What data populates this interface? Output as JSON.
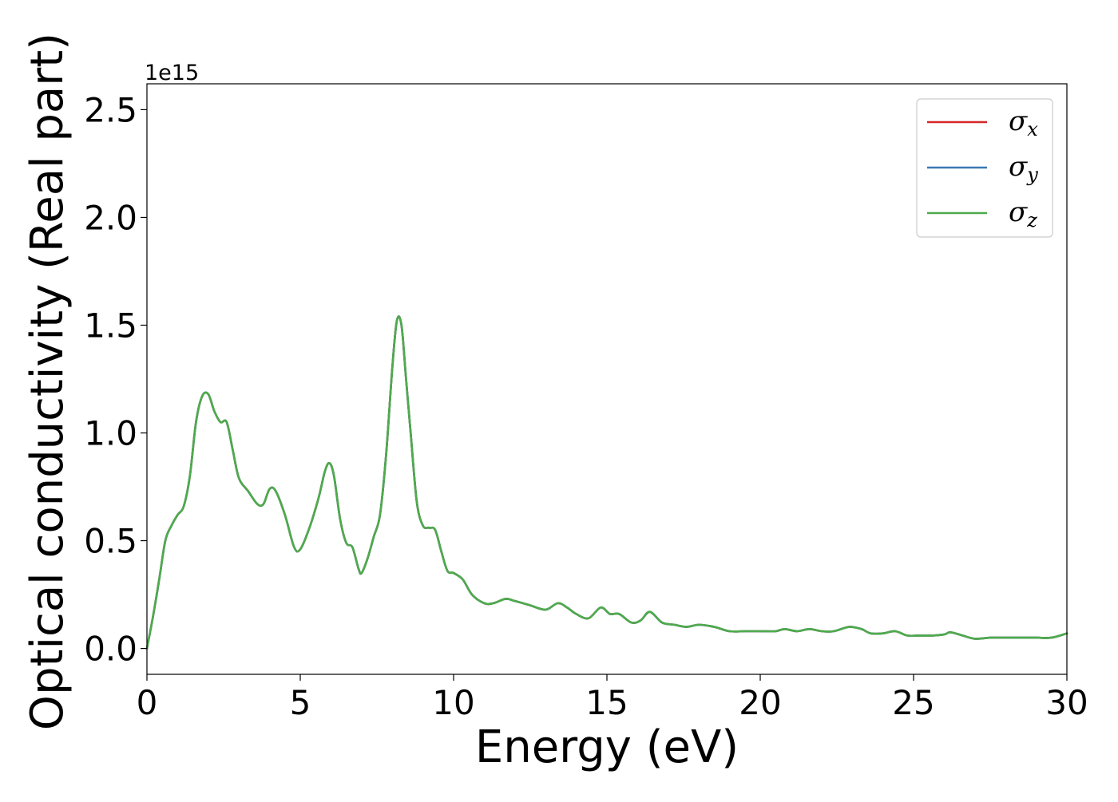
{
  "chart_data": {
    "type": "line",
    "xlabel": "Energy (eV)",
    "ylabel": "Optical conductivity (Real part)",
    "y_offset_text": "1e15",
    "xlim": [
      0,
      30
    ],
    "ylim": [
      -0.12,
      2.62
    ],
    "x_ticks": [
      0,
      5,
      10,
      15,
      20,
      25,
      30
    ],
    "x_tick_labels": [
      "0",
      "5",
      "10",
      "15",
      "20",
      "25",
      "30"
    ],
    "y_ticks": [
      0.0,
      0.5,
      1.0,
      1.5,
      2.0,
      2.5
    ],
    "y_tick_labels": [
      "0.0",
      "0.5",
      "1.0",
      "1.5",
      "2.0",
      "2.5"
    ],
    "grid": false,
    "legend_position": "top-right",
    "legend": [
      {
        "symbol": "σ",
        "subscript": "x",
        "color": "#d62728"
      },
      {
        "symbol": "σ",
        "subscript": "y",
        "color": "#3a78b5"
      },
      {
        "symbol": "σ",
        "subscript": "z",
        "color": "#4dab4b"
      }
    ],
    "x": [
      0,
      0.2,
      0.4,
      0.6,
      0.8,
      1.0,
      1.2,
      1.4,
      1.6,
      1.8,
      2.0,
      2.2,
      2.4,
      2.6,
      2.8,
      3.0,
      3.3,
      3.6,
      3.8,
      4.0,
      4.2,
      4.5,
      4.8,
      5.0,
      5.3,
      5.6,
      5.8,
      5.95,
      6.1,
      6.3,
      6.5,
      6.7,
      6.9,
      7.0,
      7.2,
      7.4,
      7.6,
      7.8,
      8.0,
      8.15,
      8.3,
      8.45,
      8.6,
      8.8,
      9.0,
      9.2,
      9.4,
      9.6,
      9.8,
      10.0,
      10.3,
      10.6,
      11.0,
      11.3,
      11.7,
      12.0,
      12.5,
      13.0,
      13.4,
      13.7,
      14.0,
      14.4,
      14.8,
      15.1,
      15.4,
      15.8,
      16.1,
      16.4,
      16.8,
      17.2,
      17.6,
      18.0,
      18.5,
      19.0,
      19.5,
      20.0,
      20.5,
      20.8,
      21.2,
      21.6,
      22.0,
      22.4,
      22.9,
      23.3,
      23.6,
      24.0,
      24.4,
      24.8,
      25.2,
      25.6,
      26.0,
      26.2,
      26.6,
      27.0,
      27.5,
      28.0,
      28.5,
      29.0,
      29.5,
      30.0
    ],
    "series": [
      {
        "name": "σx",
        "color": "#d62728",
        "values": [
          0.0,
          0.15,
          0.32,
          0.5,
          0.57,
          0.62,
          0.66,
          0.8,
          1.05,
          1.17,
          1.18,
          1.1,
          1.05,
          1.05,
          0.92,
          0.79,
          0.73,
          0.67,
          0.67,
          0.74,
          0.73,
          0.62,
          0.47,
          0.46,
          0.56,
          0.7,
          0.82,
          0.86,
          0.8,
          0.6,
          0.49,
          0.47,
          0.37,
          0.35,
          0.42,
          0.52,
          0.62,
          0.9,
          1.3,
          1.52,
          1.5,
          1.25,
          1.0,
          0.68,
          0.57,
          0.56,
          0.55,
          0.45,
          0.36,
          0.35,
          0.32,
          0.25,
          0.21,
          0.21,
          0.23,
          0.22,
          0.2,
          0.18,
          0.21,
          0.19,
          0.16,
          0.14,
          0.19,
          0.16,
          0.16,
          0.12,
          0.13,
          0.17,
          0.12,
          0.11,
          0.1,
          0.11,
          0.1,
          0.08,
          0.08,
          0.08,
          0.08,
          0.09,
          0.08,
          0.09,
          0.08,
          0.08,
          0.1,
          0.09,
          0.07,
          0.07,
          0.08,
          0.06,
          0.06,
          0.06,
          0.065,
          0.075,
          0.06,
          0.045,
          0.05,
          0.05,
          0.05,
          0.05,
          0.05,
          0.07
        ]
      },
      {
        "name": "σy",
        "color": "#3a78b5",
        "values": [
          0.0,
          0.15,
          0.32,
          0.5,
          0.57,
          0.62,
          0.66,
          0.8,
          1.05,
          1.17,
          1.18,
          1.1,
          1.05,
          1.05,
          0.92,
          0.79,
          0.73,
          0.67,
          0.67,
          0.74,
          0.73,
          0.62,
          0.47,
          0.46,
          0.56,
          0.7,
          0.82,
          0.86,
          0.8,
          0.6,
          0.49,
          0.47,
          0.37,
          0.35,
          0.42,
          0.52,
          0.62,
          0.9,
          1.3,
          1.52,
          1.5,
          1.25,
          1.0,
          0.68,
          0.57,
          0.56,
          0.55,
          0.45,
          0.36,
          0.35,
          0.32,
          0.25,
          0.21,
          0.21,
          0.23,
          0.22,
          0.2,
          0.18,
          0.21,
          0.19,
          0.16,
          0.14,
          0.19,
          0.16,
          0.16,
          0.12,
          0.13,
          0.17,
          0.12,
          0.11,
          0.1,
          0.11,
          0.1,
          0.08,
          0.08,
          0.08,
          0.08,
          0.09,
          0.08,
          0.09,
          0.08,
          0.08,
          0.1,
          0.09,
          0.07,
          0.07,
          0.08,
          0.06,
          0.06,
          0.06,
          0.065,
          0.075,
          0.06,
          0.045,
          0.05,
          0.05,
          0.05,
          0.05,
          0.05,
          0.07
        ]
      },
      {
        "name": "σz",
        "color": "#4dab4b",
        "values": [
          0.0,
          0.15,
          0.32,
          0.5,
          0.57,
          0.62,
          0.66,
          0.8,
          1.05,
          1.17,
          1.18,
          1.1,
          1.05,
          1.05,
          0.92,
          0.79,
          0.73,
          0.67,
          0.67,
          0.74,
          0.73,
          0.62,
          0.47,
          0.46,
          0.56,
          0.7,
          0.82,
          0.86,
          0.8,
          0.6,
          0.49,
          0.47,
          0.37,
          0.35,
          0.42,
          0.52,
          0.62,
          0.9,
          1.3,
          1.52,
          1.5,
          1.25,
          1.0,
          0.68,
          0.57,
          0.56,
          0.55,
          0.45,
          0.36,
          0.35,
          0.32,
          0.25,
          0.21,
          0.21,
          0.23,
          0.22,
          0.2,
          0.18,
          0.21,
          0.19,
          0.16,
          0.14,
          0.19,
          0.16,
          0.16,
          0.12,
          0.13,
          0.17,
          0.12,
          0.11,
          0.1,
          0.11,
          0.1,
          0.08,
          0.08,
          0.08,
          0.08,
          0.09,
          0.08,
          0.09,
          0.08,
          0.08,
          0.1,
          0.09,
          0.07,
          0.07,
          0.08,
          0.06,
          0.06,
          0.06,
          0.065,
          0.075,
          0.06,
          0.045,
          0.05,
          0.05,
          0.05,
          0.05,
          0.05,
          0.07
        ]
      }
    ]
  }
}
